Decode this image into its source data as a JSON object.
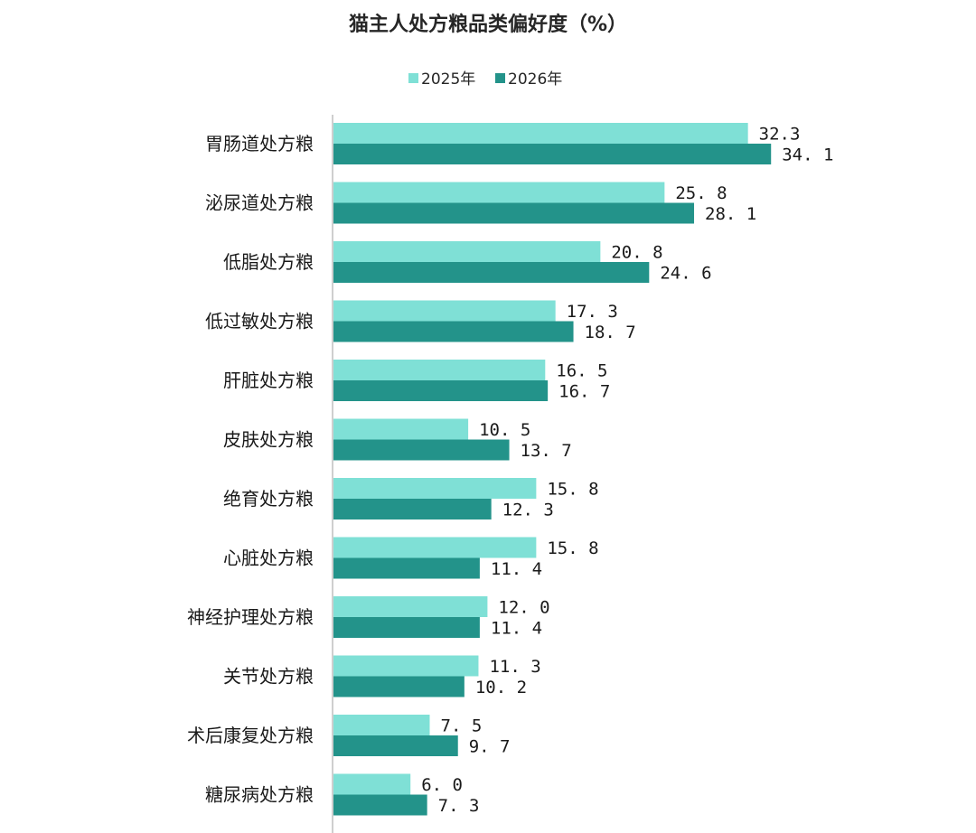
{
  "colors": {
    "series_2025": "#7fe0d6",
    "series_2026": "#23938a",
    "axis": "#bfbfbf",
    "text": "#1a1a1a"
  },
  "chart_data": {
    "type": "bar",
    "orientation": "horizontal",
    "title": "猫主人处方粮品类偏好度（%）",
    "xlabel": "",
    "ylabel": "",
    "xlim": [
      0,
      40
    ],
    "grid": false,
    "legend_position": "top-center",
    "categories": [
      "胃肠道处方粮",
      "泌尿道处方粮",
      "低脂处方粮",
      "低过敏处方粮",
      "肝脏处方粮",
      "皮肤处方粮",
      "绝育处方粮",
      "心脏处方粮",
      "神经护理处方粮",
      "关节处方粮",
      "术后康复处方粮",
      "糖尿病处方粮"
    ],
    "series": [
      {
        "name": "2025年",
        "color": "#7fe0d6",
        "values": [
          32.3,
          25.8,
          20.8,
          17.3,
          16.5,
          10.5,
          15.8,
          15.8,
          12.0,
          11.3,
          7.5,
          6.0
        ],
        "labels": [
          "32.3",
          "25. 8",
          "20. 8",
          "17. 3",
          "16. 5",
          "10. 5",
          "15. 8",
          "15. 8",
          "12. 0",
          "11. 3",
          "7. 5",
          "6. 0"
        ]
      },
      {
        "name": "2026年",
        "color": "#23938a",
        "values": [
          34.1,
          28.1,
          24.6,
          18.7,
          16.7,
          13.7,
          12.3,
          11.4,
          11.4,
          10.2,
          9.7,
          7.3
        ],
        "labels": [
          "34. 1",
          "28. 1",
          "24. 6",
          "18. 7",
          "16. 7",
          "13. 7",
          "12. 3",
          "11. 4",
          "11. 4",
          "10. 2",
          "9. 7",
          "7. 3"
        ]
      }
    ]
  }
}
